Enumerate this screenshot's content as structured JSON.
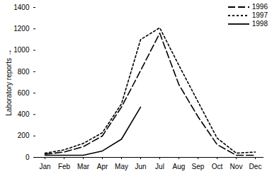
{
  "chart_data": {
    "type": "line",
    "y_label": "Laboratory reports",
    "categories": [
      "Jan",
      "Feb",
      "Mar",
      "Apr",
      "May",
      "Jun",
      "Jul",
      "Aug",
      "Sep",
      "Oct",
      "Nov",
      "Dec"
    ],
    "series": [
      {
        "name": "1996",
        "color": "#000000",
        "line_style": "long_dash",
        "values": [
          30,
          50,
          100,
          200,
          470,
          810,
          1160,
          680,
          380,
          120,
          20,
          20
        ]
      },
      {
        "name": "1997",
        "color": "#000000",
        "line_style": "short_dash",
        "values": [
          40,
          70,
          130,
          230,
          500,
          1100,
          1210,
          860,
          520,
          180,
          40,
          50
        ]
      },
      {
        "name": "1998",
        "color": "#000000",
        "line_style": "solid",
        "values": [
          20,
          20,
          20,
          60,
          170,
          470,
          null,
          null,
          null,
          null,
          null,
          null
        ]
      }
    ],
    "ylim": [
      0,
      1400
    ],
    "yticks": [
      0,
      200,
      400,
      600,
      800,
      1000,
      1200,
      1400
    ],
    "grid": false,
    "legend": "upper right"
  }
}
